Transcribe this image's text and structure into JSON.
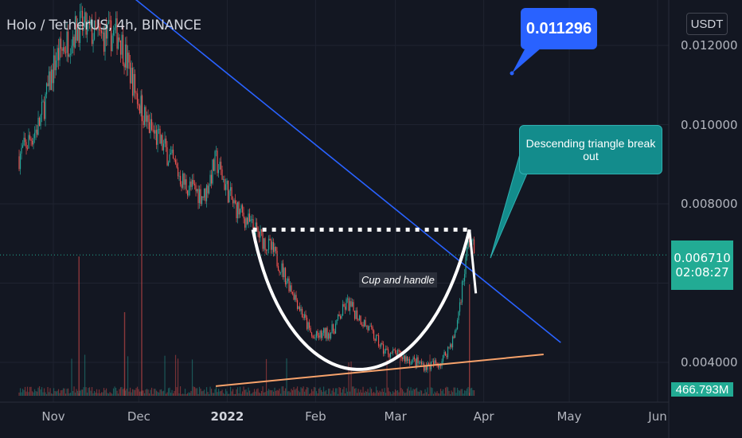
{
  "header": {
    "symbol": "Holo / TetherUS, 4h, BINANCE"
  },
  "currency_button": "USDT",
  "last_price": {
    "price": "0.006710",
    "countdown": "02:08:27"
  },
  "volume_label": "466.793M",
  "annotations": {
    "price_callout": "0.011296",
    "breakout_callout": "Descending triangle break out",
    "pattern_label": "Cup and handle"
  },
  "colors": {
    "background": "#131722",
    "up_candle": "#26a69a",
    "down_candle": "#ef5350",
    "trendline": "#2962ff",
    "support_line": "#f7a26b",
    "cup": "#ffffff",
    "last_price_line": "#22ab94"
  },
  "chart_data": {
    "type": "candlestick",
    "title": "Holo / TetherUS, 4h, BINANCE",
    "y_ticks": [
      "0.012000",
      "0.010000",
      "0.008000",
      "0.004000"
    ],
    "x_ticks": [
      "Nov",
      "Dec",
      "2022",
      "Feb",
      "Mar",
      "Apr",
      "May",
      "Jun"
    ],
    "ylim": [
      0.0034,
      0.0126
    ],
    "price_path": [
      {
        "date": "2021-10-20",
        "close": 0.0092
      },
      {
        "date": "2021-10-27",
        "close": 0.01
      },
      {
        "date": "2021-11-02",
        "close": 0.0117
      },
      {
        "date": "2021-11-10",
        "close": 0.0125
      },
      {
        "date": "2021-11-17",
        "close": 0.0122
      },
      {
        "date": "2021-11-24",
        "close": 0.0123
      },
      {
        "date": "2021-11-30",
        "close": 0.0108
      },
      {
        "date": "2021-12-04",
        "close": 0.01
      },
      {
        "date": "2021-12-10",
        "close": 0.0094
      },
      {
        "date": "2021-12-17",
        "close": 0.0085
      },
      {
        "date": "2021-12-24",
        "close": 0.0082
      },
      {
        "date": "2021-12-28",
        "close": 0.0091
      },
      {
        "date": "2022-01-03",
        "close": 0.008
      },
      {
        "date": "2022-01-10",
        "close": 0.0074
      },
      {
        "date": "2022-01-17",
        "close": 0.0068
      },
      {
        "date": "2022-01-24",
        "close": 0.0058
      },
      {
        "date": "2022-01-31",
        "close": 0.0046
      },
      {
        "date": "2022-02-07",
        "close": 0.0048
      },
      {
        "date": "2022-02-12",
        "close": 0.0055
      },
      {
        "date": "2022-02-18",
        "close": 0.005
      },
      {
        "date": "2022-02-25",
        "close": 0.0043
      },
      {
        "date": "2022-03-05",
        "close": 0.0041
      },
      {
        "date": "2022-03-12",
        "close": 0.0039
      },
      {
        "date": "2022-03-17",
        "close": 0.004
      },
      {
        "date": "2022-03-22",
        "close": 0.0047
      },
      {
        "date": "2022-03-27",
        "close": 0.0072
      },
      {
        "date": "2022-03-29",
        "close": 0.0067
      }
    ],
    "last_price": 0.00671,
    "volume_last": "466.793M",
    "drawings": {
      "descending_trendline": [
        {
          "date": "2021-11-24",
          "price": 0.0135
        },
        {
          "date": "2022-04-28",
          "price": 0.0045
        }
      ],
      "support_line": [
        {
          "date": "2021-12-28",
          "price": 0.0034
        },
        {
          "date": "2022-04-22",
          "price": 0.0042
        }
      ],
      "cup_rim_price": 0.00735,
      "cup_bottom_price": 0.0036,
      "price_target": 0.011296
    }
  }
}
